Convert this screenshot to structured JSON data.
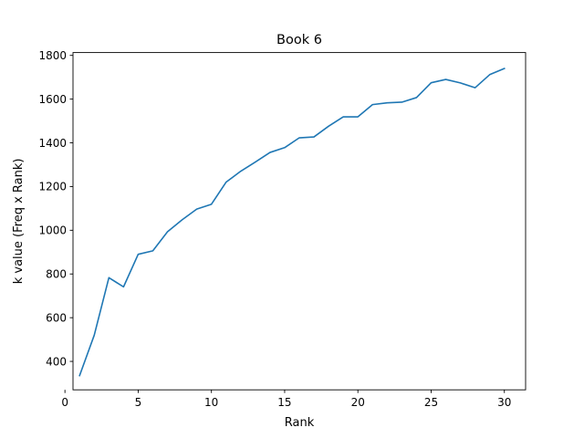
{
  "chart_data": {
    "type": "line",
    "title": "Book 6",
    "xlabel": "Rank",
    "ylabel": "k value (Freq x Rank)",
    "xlim": [
      0.55,
      31.45
    ],
    "ylim": [
      270,
      1813
    ],
    "xticks": [
      0,
      5,
      10,
      15,
      20,
      25,
      30
    ],
    "yticks": [
      400,
      600,
      800,
      1000,
      1200,
      1400,
      1600,
      1800
    ],
    "grid": false,
    "series": [
      {
        "name": "k value",
        "color": "#1f77b4",
        "x": [
          1,
          2,
          3,
          4,
          5,
          6,
          7,
          8,
          9,
          10,
          11,
          12,
          13,
          14,
          15,
          16,
          17,
          18,
          19,
          20,
          21,
          22,
          23,
          24,
          25,
          26,
          27,
          28,
          29,
          30
        ],
        "y": [
          335,
          520,
          783,
          741,
          890,
          906,
          993,
          1048,
          1097,
          1119,
          1220,
          1270,
          1312,
          1356,
          1378,
          1423,
          1427,
          1476,
          1519,
          1519,
          1575,
          1583,
          1586,
          1607,
          1675,
          1690,
          1674,
          1652,
          1712,
          1740
        ]
      }
    ]
  }
}
